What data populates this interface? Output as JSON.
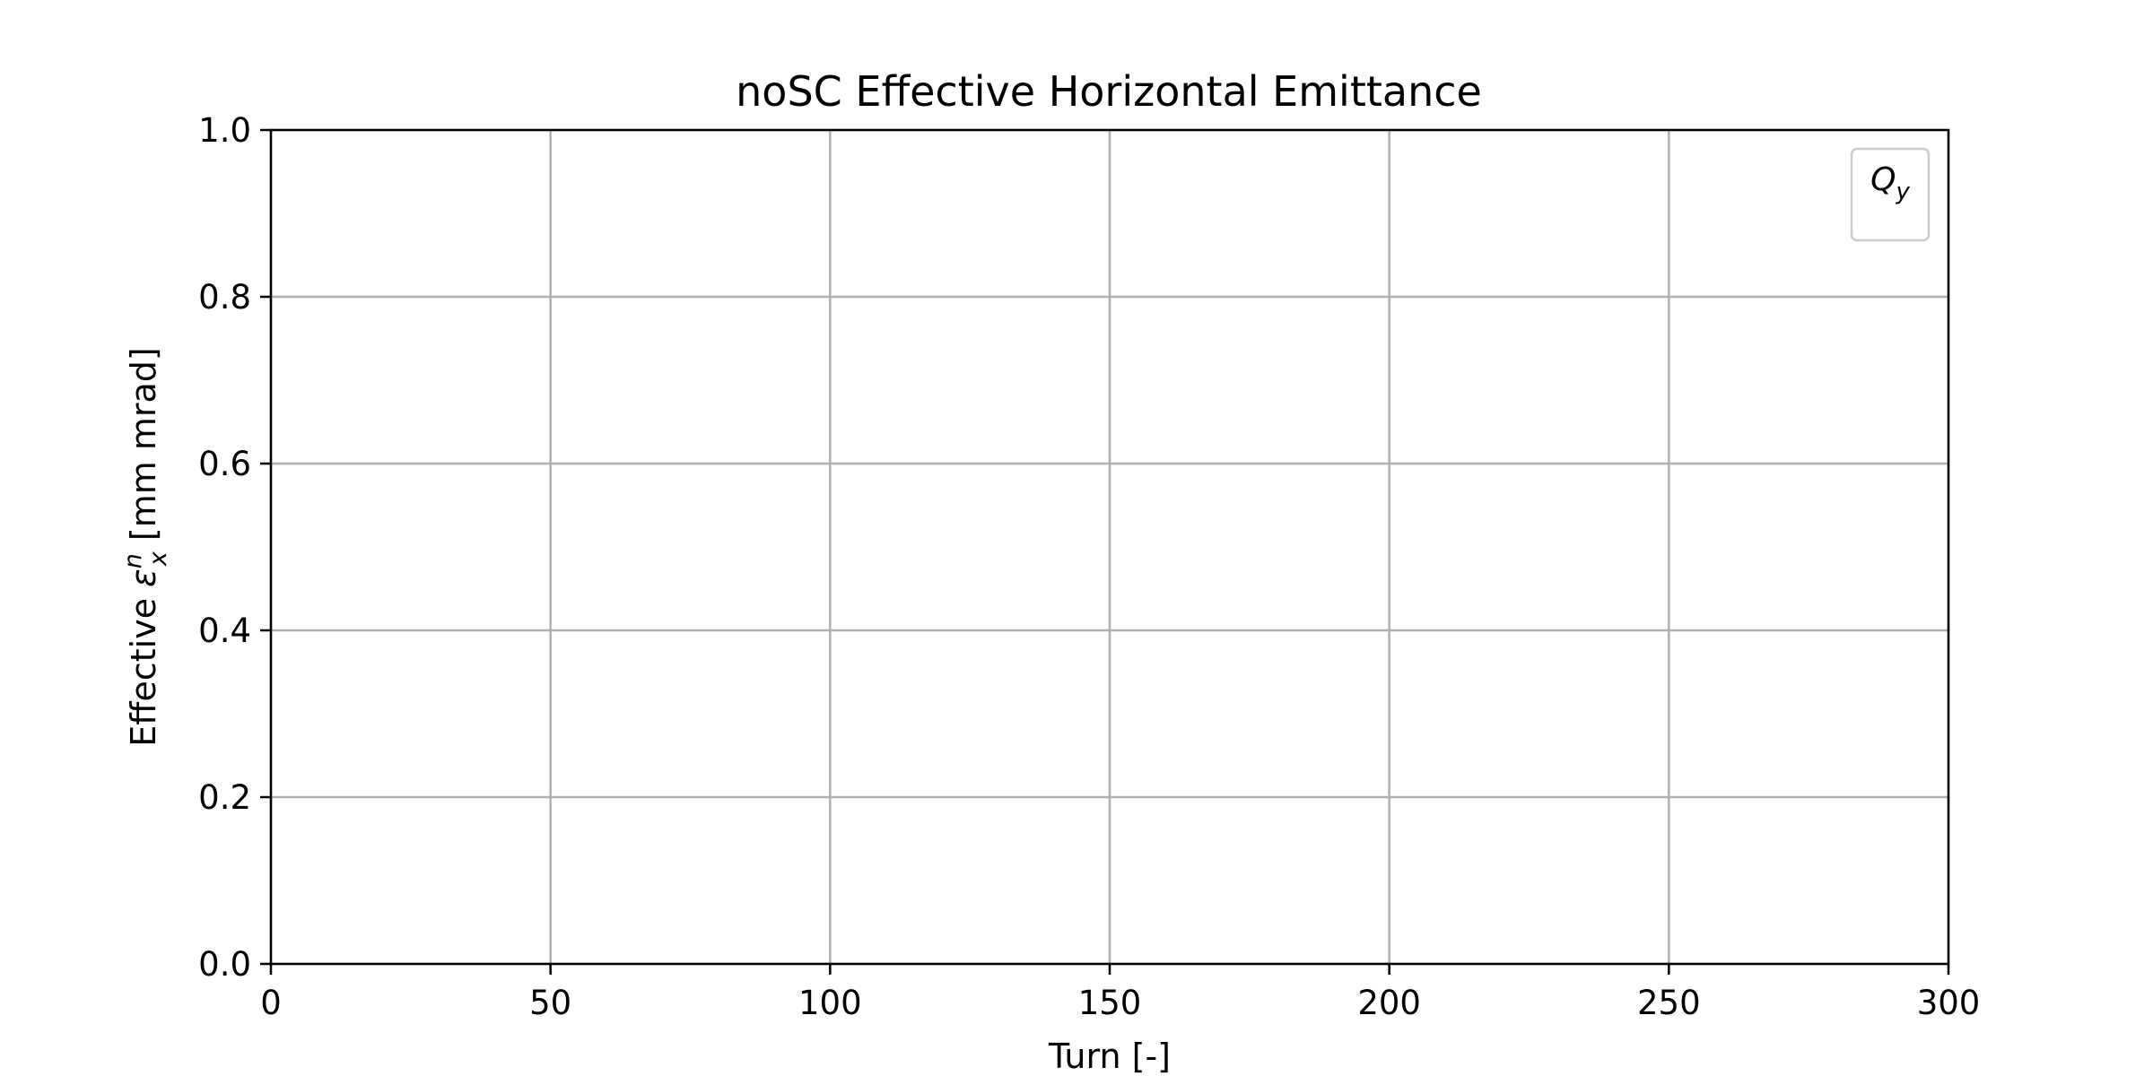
{
  "chart_data": {
    "type": "line",
    "title": "noSC Effective Horizontal Emittance",
    "xlabel": "Turn [-]",
    "ylabel": {
      "prefix": "Effective ",
      "symbol": "ε",
      "superscript": "n",
      "subscript": "x",
      "suffix": " [mm mrad]"
    },
    "xlim": [
      0,
      300
    ],
    "ylim": [
      0.0,
      1.0
    ],
    "xticks": [
      0,
      50,
      100,
      150,
      200,
      250,
      300
    ],
    "xtick_labels": [
      "0",
      "50",
      "100",
      "150",
      "200",
      "250",
      "300"
    ],
    "yticks": [
      0.0,
      0.2,
      0.4,
      0.6,
      0.8,
      1.0
    ],
    "ytick_labels": [
      "0.0",
      "0.2",
      "0.4",
      "0.6",
      "0.8",
      "1.0"
    ],
    "grid": true,
    "legend": {
      "placement": "top-right",
      "title": {
        "base": "Q",
        "subscript": "y"
      },
      "entries": []
    },
    "series": [],
    "colors": {
      "grid": "#b0b0b0",
      "axes": "#000000",
      "legend_border": "#cccccc"
    }
  }
}
